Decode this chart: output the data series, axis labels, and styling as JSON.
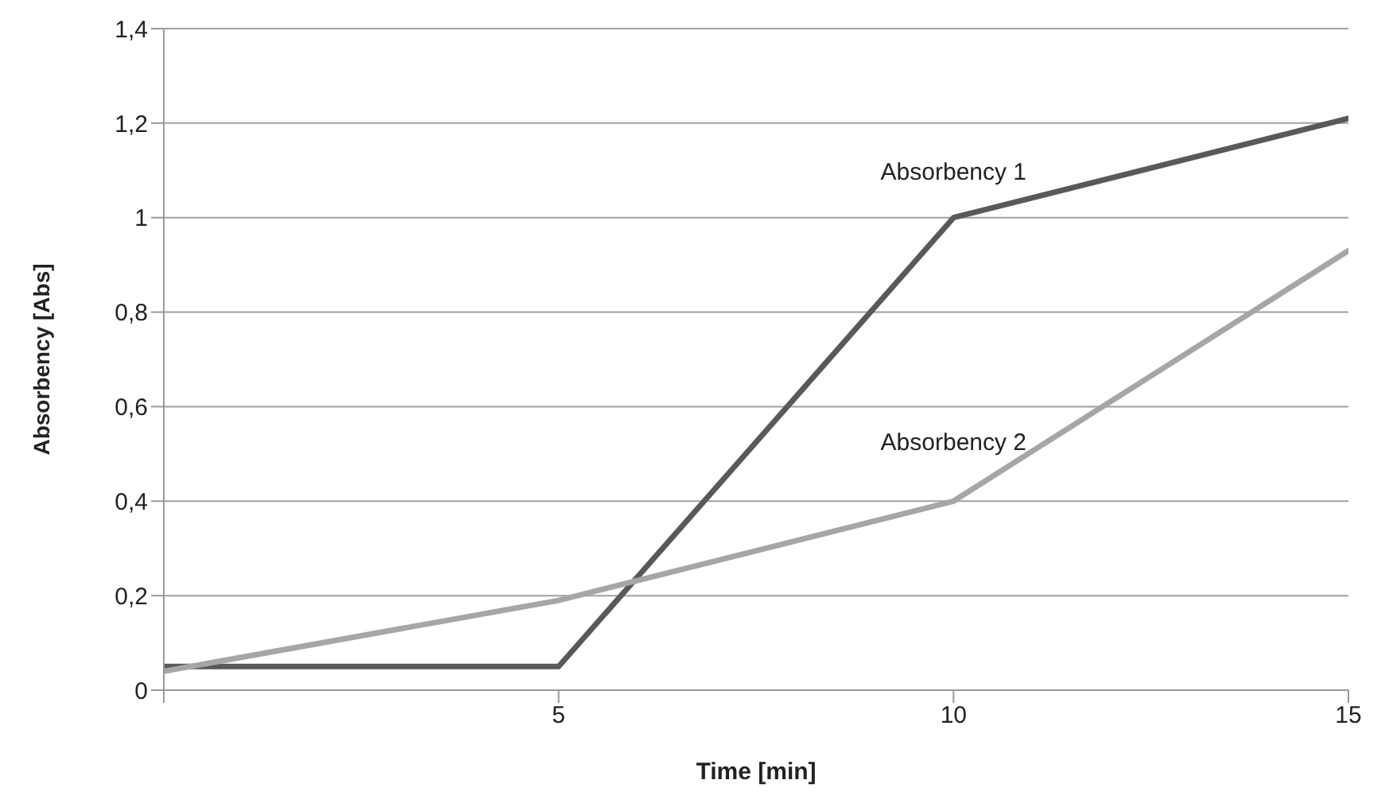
{
  "chart_data": {
    "type": "line",
    "xlabel": "Time [min]",
    "ylabel": "Absorbency [Abs]",
    "x": [
      0,
      5,
      10,
      15
    ],
    "series": [
      {
        "name": "Absorbency 1",
        "color": "#595959",
        "values": [
          0.05,
          0.05,
          1.0,
          1.21
        ]
      },
      {
        "name": "Absorbency 2",
        "color": "#a6a6a6",
        "values": [
          0.04,
          0.19,
          0.4,
          0.93
        ]
      }
    ],
    "xlim": [
      0,
      15
    ],
    "xticks": [
      {
        "value": 0,
        "label": null
      },
      5,
      10,
      15
    ],
    "ylim": [
      0,
      1.4
    ],
    "yticks": [
      {
        "value": 0,
        "label": "0"
      },
      {
        "value": 0.2,
        "label": "0,2"
      },
      {
        "value": 0.4,
        "label": "0,4"
      },
      {
        "value": 0.6,
        "label": "0,6"
      },
      {
        "value": 0.8,
        "label": "0,8"
      },
      {
        "value": 1,
        "label": "1"
      },
      {
        "value": 1.2,
        "label": "1,2"
      },
      {
        "value": 1.4,
        "label": "1,4"
      }
    ],
    "grid": "y",
    "legend": false,
    "marker": "none",
    "line_style": "solid"
  }
}
